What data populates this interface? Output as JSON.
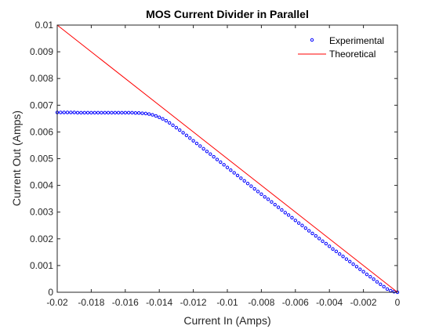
{
  "chart_data": {
    "type": "scatter",
    "title": "MOS Current Divider in Parallel",
    "xlabel": "Current In (Amps)",
    "ylabel": "Current Out (Amps)",
    "xlim": [
      -0.02,
      0
    ],
    "ylim": [
      0,
      0.01
    ],
    "xticks": [
      -0.02,
      -0.018,
      -0.016,
      -0.014,
      -0.012,
      -0.01,
      -0.008,
      -0.006,
      -0.004,
      -0.002,
      0
    ],
    "xtick_labels": [
      "-0.02",
      "-0.018",
      "-0.016",
      "-0.014",
      "-0.012",
      "-0.01",
      "-0.008",
      "-0.006",
      "-0.004",
      "-0.002",
      "0"
    ],
    "yticks": [
      0,
      0.001,
      0.002,
      0.003,
      0.004,
      0.005,
      0.006,
      0.007,
      0.008,
      0.009,
      0.01
    ],
    "ytick_labels": [
      "0",
      "0.001",
      "0.002",
      "0.003",
      "0.004",
      "0.005",
      "0.006",
      "0.007",
      "0.008",
      "0.009",
      "0.01"
    ],
    "grid": false,
    "legend_position": "top-right",
    "series": [
      {
        "name": "Experimental",
        "style": "markers",
        "color": "#0000ff",
        "x": [
          -0.02,
          -0.0198,
          -0.0196,
          -0.0194,
          -0.0192,
          -0.019,
          -0.0188,
          -0.0186,
          -0.0184,
          -0.0182,
          -0.018,
          -0.0178,
          -0.0176,
          -0.0174,
          -0.0172,
          -0.017,
          -0.0168,
          -0.0166,
          -0.0164,
          -0.0162,
          -0.016,
          -0.0158,
          -0.0156,
          -0.0154,
          -0.0152,
          -0.015,
          -0.0148,
          -0.0146,
          -0.0144,
          -0.0142,
          -0.014,
          -0.0138,
          -0.0136,
          -0.0134,
          -0.0132,
          -0.013,
          -0.0128,
          -0.0126,
          -0.0124,
          -0.0122,
          -0.012,
          -0.0118,
          -0.0116,
          -0.0114,
          -0.0112,
          -0.011,
          -0.0108,
          -0.0106,
          -0.0104,
          -0.0102,
          -0.01,
          -0.0098,
          -0.0096,
          -0.0094,
          -0.0092,
          -0.009,
          -0.0088,
          -0.0086,
          -0.0084,
          -0.0082,
          -0.008,
          -0.0078,
          -0.0076,
          -0.0074,
          -0.0072,
          -0.007,
          -0.0068,
          -0.0066,
          -0.0064,
          -0.0062,
          -0.006,
          -0.0058,
          -0.0056,
          -0.0054,
          -0.0052,
          -0.005,
          -0.0048,
          -0.0046,
          -0.0044,
          -0.0042,
          -0.004,
          -0.0038,
          -0.0036,
          -0.0034,
          -0.0032,
          -0.003,
          -0.0028,
          -0.0026,
          -0.0024,
          -0.0022,
          -0.002,
          -0.0018,
          -0.0016,
          -0.0014,
          -0.0012,
          -0.001,
          -0.0008,
          -0.0006,
          -0.0004,
          -0.0002,
          0
        ],
        "y": [
          0.00673,
          0.00673,
          0.00673,
          0.00673,
          0.00673,
          0.00673,
          0.00672,
          0.00672,
          0.00672,
          0.00672,
          0.00672,
          0.00672,
          0.00672,
          0.00672,
          0.00672,
          0.00672,
          0.00672,
          0.00672,
          0.00672,
          0.00672,
          0.00672,
          0.00672,
          0.00672,
          0.00671,
          0.00671,
          0.0067,
          0.00669,
          0.00667,
          0.00664,
          0.0066,
          0.00655,
          0.00649,
          0.00642,
          0.00634,
          0.00625,
          0.00616,
          0.00607,
          0.00597,
          0.00587,
          0.00577,
          0.00567,
          0.00557,
          0.00547,
          0.00537,
          0.00527,
          0.00517,
          0.00507,
          0.00497,
          0.00487,
          0.00477,
          0.00467,
          0.00457,
          0.00447,
          0.00437,
          0.00427,
          0.00417,
          0.00407,
          0.00397,
          0.00387,
          0.00377,
          0.00367,
          0.00357,
          0.00348,
          0.00338,
          0.00328,
          0.00318,
          0.00308,
          0.00298,
          0.00289,
          0.00279,
          0.00269,
          0.00259,
          0.0025,
          0.0024,
          0.0023,
          0.0022,
          0.00211,
          0.00201,
          0.00191,
          0.00182,
          0.00172,
          0.00162,
          0.00153,
          0.00143,
          0.00134,
          0.00124,
          0.00115,
          0.00105,
          0.00096,
          0.00086,
          0.00077,
          0.00067,
          0.00058,
          0.00049,
          0.00039,
          0.0003,
          0.00021,
          0.00012,
          6e-05,
          2e-05,
          0
        ]
      },
      {
        "name": "Theoretical",
        "style": "line",
        "color": "#ff0000",
        "x": [
          -0.02,
          0
        ],
        "y": [
          0.01,
          0
        ]
      }
    ]
  }
}
